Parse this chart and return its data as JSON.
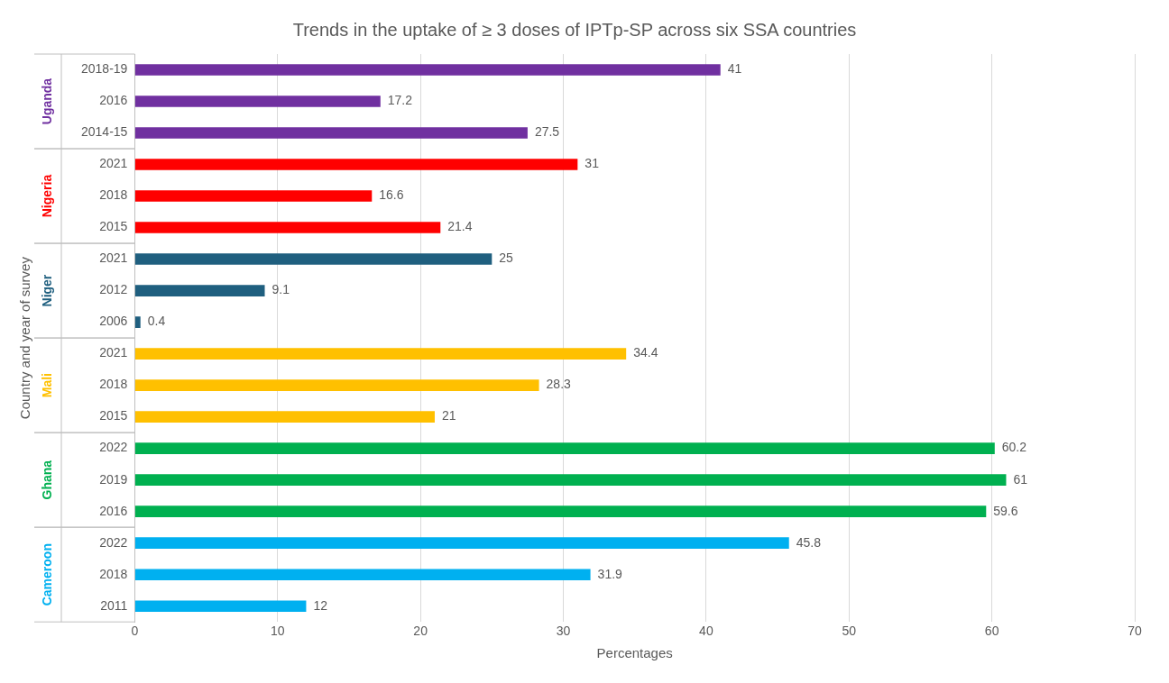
{
  "chart_data": {
    "type": "bar",
    "orientation": "horizontal",
    "title": "Trends in the uptake of ≥ 3 doses of IPTp-SP across six SSA countries",
    "xlabel": "Percentages",
    "ylabel": "Country and year of survey",
    "categories": [
      "2018-19",
      "2016",
      "2014-15",
      "2021",
      "2018",
      "2015",
      "2021",
      "2012",
      "2006",
      "2021",
      "2018",
      "2015",
      "2022",
      "2019",
      "2016",
      "2022",
      "2018",
      "2011"
    ],
    "series": [
      {
        "name": "Uganda",
        "color": "#7030a0",
        "values": [
          41,
          17.2,
          27.5,
          null,
          null,
          null,
          null,
          null,
          null,
          null,
          null,
          null,
          null,
          null,
          null,
          null,
          null,
          null
        ]
      },
      {
        "name": "Nigeria",
        "color": "#ff0000",
        "values": [
          null,
          null,
          null,
          31,
          16.6,
          21.4,
          null,
          null,
          null,
          null,
          null,
          null,
          null,
          null,
          null,
          null,
          null,
          null
        ]
      },
      {
        "name": "Niger",
        "color": "#1f5f7f",
        "values": [
          null,
          null,
          null,
          null,
          null,
          null,
          25,
          9.1,
          0.4,
          null,
          null,
          null,
          null,
          null,
          null,
          null,
          null,
          null
        ]
      },
      {
        "name": "Mali",
        "color": "#ffc000",
        "values": [
          null,
          null,
          null,
          null,
          null,
          null,
          null,
          null,
          null,
          34.4,
          28.3,
          21,
          null,
          null,
          null,
          null,
          null,
          null
        ]
      },
      {
        "name": "Ghana",
        "color": "#00b050",
        "values": [
          null,
          null,
          null,
          null,
          null,
          null,
          null,
          null,
          null,
          null,
          null,
          null,
          60.2,
          61,
          59.6,
          null,
          null,
          null
        ]
      },
      {
        "name": "Cameroon",
        "color": "#00b0f0",
        "values": [
          null,
          null,
          null,
          null,
          null,
          null,
          null,
          null,
          null,
          null,
          null,
          null,
          null,
          null,
          null,
          45.8,
          31.9,
          12
        ]
      }
    ],
    "xlim": [
      0,
      70
    ],
    "xticks": [
      0,
      10,
      20,
      30,
      40,
      50,
      60,
      70
    ],
    "grid": "x",
    "legend": false,
    "data_labels": true
  }
}
